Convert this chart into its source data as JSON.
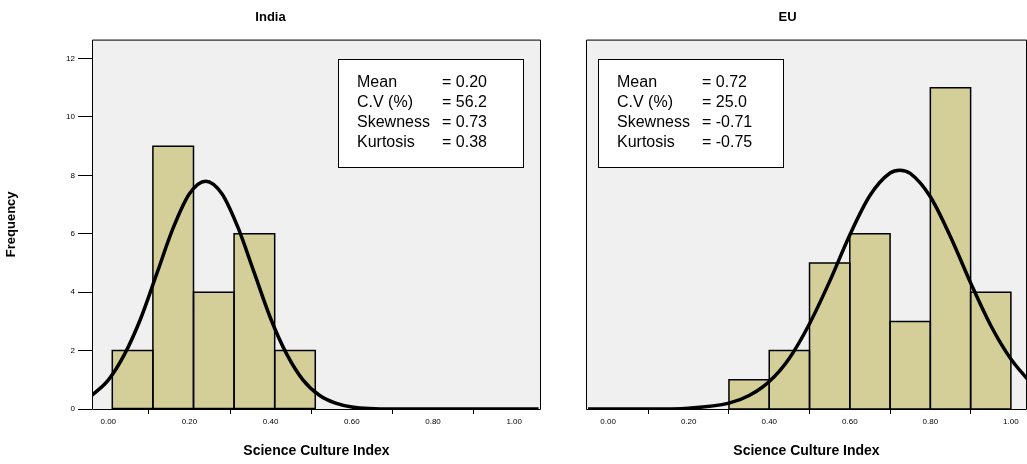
{
  "chart_data": [
    {
      "type": "histogram",
      "title": "India",
      "xlabel": "Science Culture Index",
      "ylabel": "Frequency",
      "bins": [
        0.01,
        0.11,
        0.21,
        0.31,
        0.41,
        0.51
      ],
      "values": [
        2,
        9,
        4,
        6,
        2
      ],
      "color": "#d4cf99",
      "series": [
        {
          "type": "line",
          "color": "#000000",
          "x": [
            -0.04,
            0.0,
            0.04,
            0.08,
            0.12,
            0.16,
            0.2,
            0.24,
            0.28,
            0.32,
            0.36,
            0.4,
            0.44,
            0.48,
            0.52,
            0.56,
            0.6,
            0.7,
            0.8,
            1.06
          ],
          "values": [
            0.47,
            0.99,
            1.87,
            3.1,
            4.65,
            6.2,
            7.37,
            7.8,
            7.37,
            6.2,
            4.65,
            3.1,
            1.87,
            0.99,
            0.47,
            0.2,
            0.07,
            0,
            0,
            0
          ]
        }
      ],
      "xlim": [
        -0.04,
        1.066
      ],
      "xticks": [
        {
          "value": 0,
          "label": "0.00"
        },
        {
          "value": 0.2,
          "label": "0.20"
        },
        {
          "value": 0.4,
          "label": "0.40"
        },
        {
          "value": 0.6,
          "label": "0.60"
        },
        {
          "value": 0.8,
          "label": "0.80"
        },
        {
          "value": 1,
          "label": "1.00"
        }
      ],
      "ylim": [
        0,
        12.65
      ],
      "yticks": [
        0,
        2,
        4,
        6,
        8,
        10,
        12
      ],
      "annotations": [
        "Mean = 0.20",
        "C.V (%) = 56.2",
        "Skewness = 0.73",
        "Kurtosis = 0.38"
      ]
    },
    {
      "type": "histogram",
      "title": "EU",
      "xlabel": "Science Culture Index",
      "bins": [
        0.3,
        0.4,
        0.5,
        0.6,
        0.7,
        0.8,
        0.9,
        1.0
      ],
      "values": [
        1,
        2,
        5,
        6,
        3,
        11,
        4
      ],
      "color": "#d4cf99",
      "series": [
        {
          "type": "line",
          "color": "#000000",
          "x": [
            -0.05,
            0.1,
            0.2,
            0.3,
            0.35,
            0.4,
            0.45,
            0.5,
            0.55,
            0.6,
            0.65,
            0.7,
            0.724,
            0.75,
            0.8,
            0.85,
            0.9,
            0.95,
            1.0,
            1.04
          ],
          "values": [
            0,
            0,
            0.03,
            0.2,
            0.46,
            0.94,
            1.74,
            2.92,
            4.37,
            5.96,
            7.31,
            8.08,
            8.18,
            8.07,
            7.27,
            5.9,
            4.32,
            2.86,
            1.71,
            1.04
          ]
        }
      ],
      "xlim": [
        -0.055,
        1.04
      ],
      "xticks": [
        {
          "value": 0,
          "label": "0.00"
        },
        {
          "value": 0.2,
          "label": "0.20"
        },
        {
          "value": 0.4,
          "label": "0.40"
        },
        {
          "value": 0.6,
          "label": "0.60"
        },
        {
          "value": 0.8,
          "label": "0.80"
        },
        {
          "value": 1,
          "label": "1.00"
        }
      ],
      "ylim": [
        0,
        12.65
      ],
      "yticks": [
        0,
        2,
        4,
        6,
        8,
        10,
        12
      ],
      "tick_labels": "x",
      "annotations": [
        "Mean = 0.72",
        "C.V (%) = 25.0",
        "Skewness = -0.71",
        "Kurtosis = -0.75"
      ]
    }
  ]
}
